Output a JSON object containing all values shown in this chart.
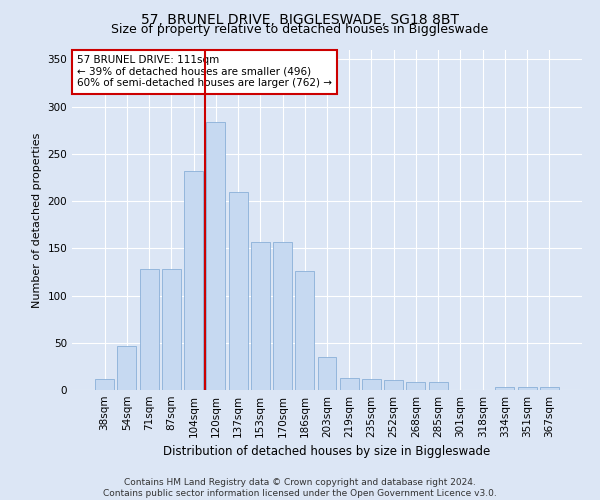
{
  "title": "57, BRUNEL DRIVE, BIGGLESWADE, SG18 8BT",
  "subtitle": "Size of property relative to detached houses in Biggleswade",
  "xlabel": "Distribution of detached houses by size in Biggleswade",
  "ylabel": "Number of detached properties",
  "footnote1": "Contains HM Land Registry data © Crown copyright and database right 2024.",
  "footnote2": "Contains public sector information licensed under the Open Government Licence v3.0.",
  "annotation_line1": "57 BRUNEL DRIVE: 111sqm",
  "annotation_line2": "← 39% of detached houses are smaller (496)",
  "annotation_line3": "60% of semi-detached houses are larger (762) →",
  "bar_labels": [
    "38sqm",
    "54sqm",
    "71sqm",
    "87sqm",
    "104sqm",
    "120sqm",
    "137sqm",
    "153sqm",
    "170sqm",
    "186sqm",
    "203sqm",
    "219sqm",
    "235sqm",
    "252sqm",
    "268sqm",
    "285sqm",
    "301sqm",
    "318sqm",
    "334sqm",
    "351sqm",
    "367sqm"
  ],
  "bar_values": [
    12,
    47,
    128,
    128,
    232,
    284,
    210,
    157,
    157,
    126,
    35,
    13,
    12,
    11,
    8,
    8,
    0,
    0,
    3,
    3,
    3
  ],
  "bar_color": "#c6d9f1",
  "bar_edgecolor": "#8ab0d8",
  "vline_color": "#cc0000",
  "vline_pos": 4.5,
  "annotation_box_facecolor": "#ffffff",
  "annotation_box_edgecolor": "#cc0000",
  "background_color": "#dce6f5",
  "ylim": [
    0,
    360
  ],
  "yticks": [
    0,
    50,
    100,
    150,
    200,
    250,
    300,
    350
  ],
  "title_fontsize": 10,
  "subtitle_fontsize": 9,
  "xlabel_fontsize": 8.5,
  "ylabel_fontsize": 8,
  "tick_fontsize": 7.5,
  "annot_fontsize": 7.5,
  "footnote_fontsize": 6.5
}
